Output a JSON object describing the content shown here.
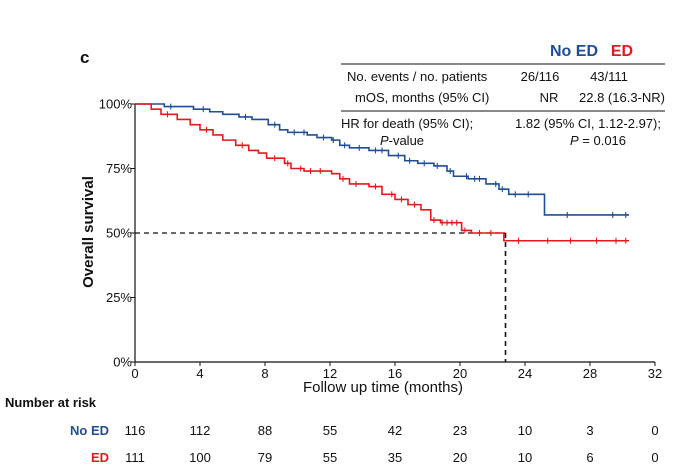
{
  "panel_label": "c",
  "chart_data": {
    "type": "line",
    "title": "",
    "xlabel": "Follow up time (months)",
    "ylabel": "Overall survival",
    "xlim": [
      0,
      32
    ],
    "ylim": [
      0,
      100
    ],
    "x_ticks": [
      0,
      4,
      8,
      12,
      16,
      20,
      24,
      28,
      32
    ],
    "y_ticks": [
      0,
      25,
      50,
      75,
      100
    ],
    "y_tick_labels": [
      "0%",
      "25%",
      "50%",
      "75%",
      "100%"
    ],
    "median_line": {
      "y": 50,
      "x": 22.8
    },
    "series": [
      {
        "name": "No ED",
        "color": "#1f4e96",
        "steps": [
          [
            0,
            100
          ],
          [
            1.8,
            99
          ],
          [
            3.6,
            98
          ],
          [
            4.6,
            97
          ],
          [
            5.4,
            96
          ],
          [
            6.4,
            95
          ],
          [
            7.2,
            94
          ],
          [
            8.2,
            92
          ],
          [
            8.9,
            90
          ],
          [
            9.4,
            89
          ],
          [
            10.6,
            88
          ],
          [
            11.2,
            87
          ],
          [
            12.1,
            86
          ],
          [
            12.6,
            84
          ],
          [
            13.2,
            83
          ],
          [
            14.4,
            82
          ],
          [
            15.6,
            80
          ],
          [
            16.6,
            78
          ],
          [
            17.4,
            77
          ],
          [
            18.4,
            76
          ],
          [
            19.2,
            74
          ],
          [
            19.6,
            72
          ],
          [
            20.5,
            71
          ],
          [
            21.6,
            69
          ],
          [
            22.4,
            67
          ],
          [
            23.0,
            65
          ],
          [
            25.2,
            57
          ],
          [
            30.4,
            57
          ]
        ],
        "censor_x": [
          2.2,
          4.2,
          6.8,
          8.6,
          9.8,
          10.4,
          11.6,
          12.2,
          12.9,
          13.8,
          14.8,
          15.2,
          16.2,
          16.9,
          17.8,
          18.6,
          19.4,
          20.4,
          20.9,
          21.2,
          22.2,
          22.6,
          23.4,
          24.2,
          26.6,
          29.4,
          30.2
        ]
      },
      {
        "name": "ED",
        "color": "#e31a1c",
        "steps": [
          [
            0,
            100
          ],
          [
            1.0,
            98
          ],
          [
            1.6,
            96
          ],
          [
            2.6,
            94
          ],
          [
            3.4,
            92
          ],
          [
            4.0,
            90
          ],
          [
            4.8,
            88
          ],
          [
            5.4,
            86
          ],
          [
            6.2,
            84
          ],
          [
            7.0,
            82
          ],
          [
            7.6,
            81
          ],
          [
            8.1,
            79
          ],
          [
            9.2,
            77
          ],
          [
            9.6,
            75
          ],
          [
            10.4,
            74
          ],
          [
            12.1,
            73
          ],
          [
            12.6,
            71
          ],
          [
            13.2,
            69
          ],
          [
            14.4,
            68
          ],
          [
            15.2,
            65
          ],
          [
            16.0,
            63
          ],
          [
            16.8,
            61
          ],
          [
            17.6,
            59
          ],
          [
            18.2,
            55
          ],
          [
            18.8,
            54
          ],
          [
            20.1,
            51
          ],
          [
            20.7,
            50
          ],
          [
            22.7,
            47
          ],
          [
            30.4,
            47
          ]
        ],
        "censor_x": [
          2.0,
          4.4,
          6.6,
          8.6,
          9.4,
          10.2,
          10.8,
          11.4,
          12.8,
          13.6,
          14.8,
          15.8,
          16.4,
          17.2,
          18.4,
          18.9,
          19.2,
          19.5,
          19.8,
          20.3,
          21.2,
          21.9,
          23.6,
          25.4,
          26.8,
          28.4,
          29.6,
          30.2
        ]
      }
    ]
  },
  "stats_table": {
    "columns": [
      "No ED",
      "ED"
    ],
    "column_colors": [
      "#1f4e96",
      "#e31a1c"
    ],
    "rows": [
      {
        "label": "No. events / no. patients",
        "no_ed": "26/116",
        "ed": "43/111"
      },
      {
        "label": "mOS, months (95% CI)",
        "no_ed": "NR",
        "ed": "22.8 (16.3-NR)"
      }
    ],
    "hr_label_line1": "HR for death (95% CI);",
    "hr_label_line2": "-value",
    "hr_label_p": "P",
    "hr_value": "1.82 (95% CI, 1.12-2.97);",
    "p_symbol": "P",
    "p_value": " = 0.016"
  },
  "risk_table": {
    "title": "Number at risk",
    "rows": [
      {
        "label": "No ED",
        "color": "#1f4e96",
        "values": [
          "116",
          "112",
          "88",
          "55",
          "42",
          "23",
          "10",
          "3",
          "0"
        ]
      },
      {
        "label": "ED",
        "color": "#e31a1c",
        "values": [
          "111",
          "100",
          "79",
          "55",
          "35",
          "20",
          "10",
          "6",
          "0"
        ]
      }
    ]
  }
}
